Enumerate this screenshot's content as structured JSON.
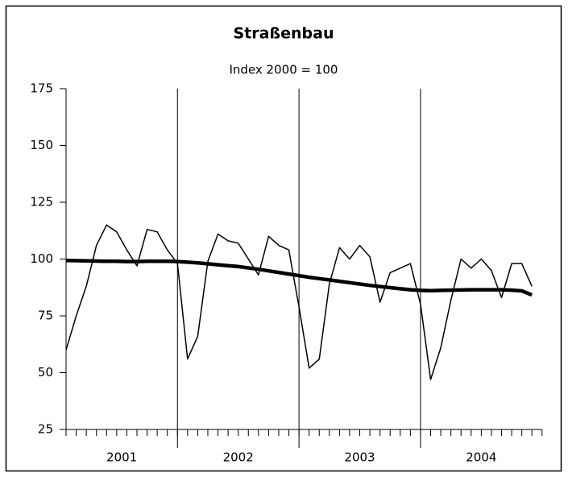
{
  "chart_data": {
    "type": "line",
    "title": "Straßenbau",
    "subtitle": "Index 2000 = 100",
    "categories": [
      null,
      null,
      null,
      null,
      null,
      null,
      null,
      null,
      null,
      null,
      null,
      null,
      null,
      null,
      null,
      null,
      null,
      null,
      null,
      null,
      null,
      null,
      null,
      null,
      null,
      null,
      null,
      null,
      null,
      null,
      null,
      null,
      null,
      null,
      null,
      null,
      null,
      null,
      null,
      null,
      null,
      null,
      null,
      null,
      null,
      null,
      null
    ],
    "year_labels": [
      "2001",
      "2002",
      "2003",
      "2004"
    ],
    "series": [
      {
        "color": "#000000",
        "values": [
          60,
          75,
          88,
          106,
          115,
          112,
          104,
          97,
          113,
          112,
          104,
          98,
          56,
          66,
          99,
          111,
          108,
          107,
          100,
          93,
          110,
          106,
          104,
          79,
          52,
          56,
          89,
          105,
          100,
          106,
          101,
          81,
          94,
          96,
          98,
          80,
          47,
          61,
          82,
          100,
          96,
          100,
          95,
          83,
          98,
          98,
          88
        ]
      },
      {
        "color": "#000000",
        "values": [
          99.4,
          99.3,
          99.2,
          99.1,
          99.0,
          99.0,
          98.9,
          98.9,
          99.0,
          99.0,
          99.0,
          98.9,
          98.6,
          98.3,
          97.9,
          97.5,
          97.1,
          96.7,
          96.1,
          95.5,
          94.8,
          94.1,
          93.4,
          92.7,
          92.0,
          91.4,
          90.8,
          90.2,
          89.6,
          89.0,
          88.4,
          87.9,
          87.4,
          86.9,
          86.5,
          86.2,
          86.1,
          86.2,
          86.3,
          86.4,
          86.5,
          86.5,
          86.5,
          86.5,
          86.3,
          86.0,
          84.2
        ]
      }
    ],
    "ylim": [
      25,
      175
    ],
    "yticks": [
      25,
      50,
      75,
      100,
      125,
      150,
      175
    ]
  }
}
